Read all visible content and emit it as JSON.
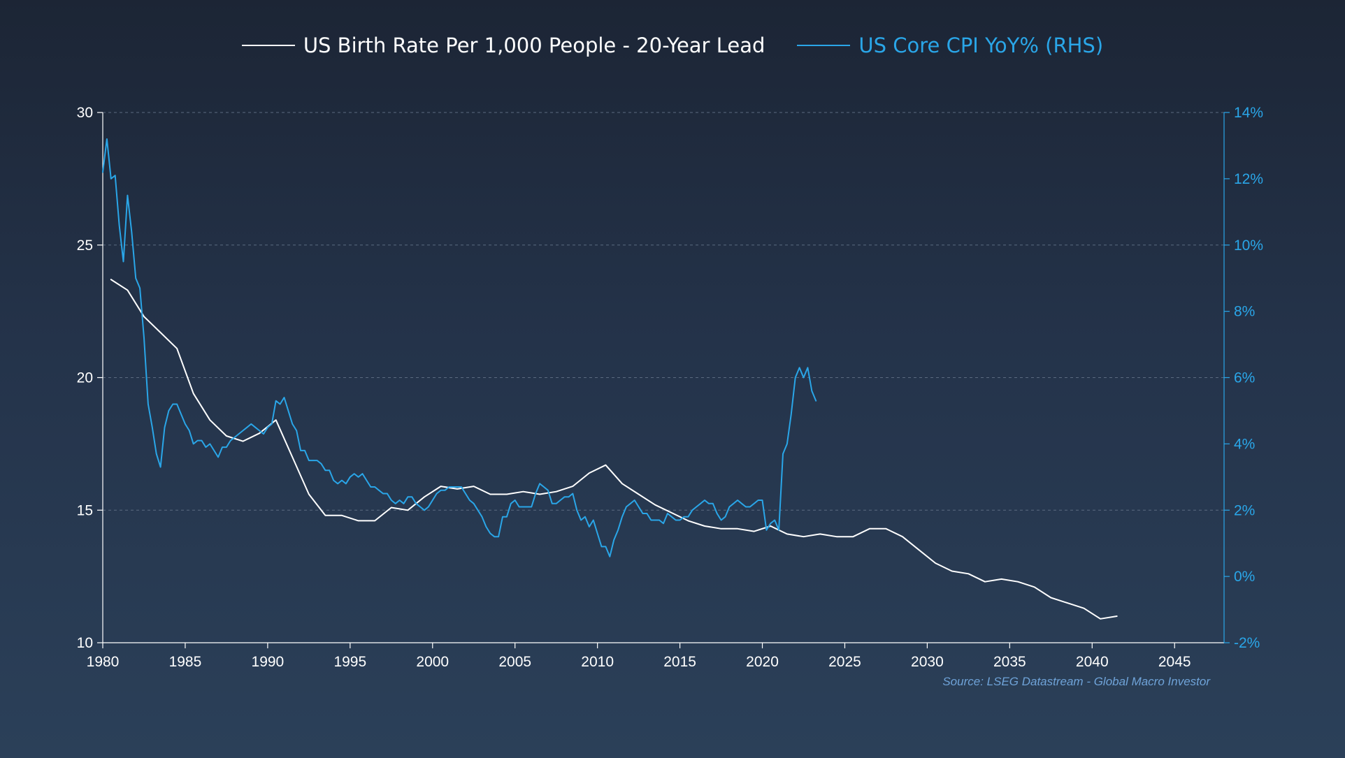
{
  "chart_data": {
    "type": "line",
    "title": "",
    "source": "Source: LSEG Datastream - Global Macro Investor",
    "x_axis": {
      "min": 1980,
      "max": 2048,
      "ticks": [
        1980,
        1985,
        1990,
        1995,
        2000,
        2005,
        2010,
        2015,
        2020,
        2025,
        2030,
        2035,
        2040,
        2045
      ],
      "tick_labels": [
        "1980",
        "1985",
        "1990",
        "1995",
        "2000",
        "2005",
        "2010",
        "2015",
        "2020",
        "2025",
        "2030",
        "2035",
        "2040",
        "2045"
      ]
    },
    "y_left": {
      "min": 10,
      "max": 30,
      "ticks": [
        10,
        15,
        20,
        25,
        30
      ],
      "tick_labels": [
        "10",
        "15",
        "20",
        "25",
        "30"
      ]
    },
    "y_right": {
      "min": -2,
      "max": 14,
      "ticks": [
        -2,
        0,
        2,
        4,
        6,
        8,
        10,
        12,
        14
      ],
      "tick_labels": [
        "-2%",
        "0%",
        "2%",
        "4%",
        "6%",
        "8%",
        "10%",
        "12%",
        "14%"
      ]
    },
    "grid": "horizontal-dashed",
    "legend_position": "top-center",
    "series": [
      {
        "name": "US Birth Rate Per 1,000 People - 20-Year Lead",
        "axis": "left",
        "color": "#ffffff",
        "points": [
          [
            1980.5,
            23.7
          ],
          [
            1981.5,
            23.3
          ],
          [
            1982.5,
            22.3
          ],
          [
            1983.5,
            21.7
          ],
          [
            1984.5,
            21.1
          ],
          [
            1985.5,
            19.4
          ],
          [
            1986.5,
            18.4
          ],
          [
            1987.5,
            17.8
          ],
          [
            1988.5,
            17.6
          ],
          [
            1989.5,
            17.9
          ],
          [
            1990.5,
            18.4
          ],
          [
            1991.5,
            17.0
          ],
          [
            1992.5,
            15.6
          ],
          [
            1993.5,
            14.8
          ],
          [
            1994.5,
            14.8
          ],
          [
            1995.5,
            14.6
          ],
          [
            1996.5,
            14.6
          ],
          [
            1997.5,
            15.1
          ],
          [
            1998.5,
            15.0
          ],
          [
            1999.5,
            15.5
          ],
          [
            2000.5,
            15.9
          ],
          [
            2001.5,
            15.8
          ],
          [
            2002.5,
            15.9
          ],
          [
            2003.5,
            15.6
          ],
          [
            2004.5,
            15.6
          ],
          [
            2005.5,
            15.7
          ],
          [
            2006.5,
            15.6
          ],
          [
            2007.5,
            15.7
          ],
          [
            2008.5,
            15.9
          ],
          [
            2009.5,
            16.4
          ],
          [
            2010.5,
            16.7
          ],
          [
            2011.5,
            16.0
          ],
          [
            2012.5,
            15.6
          ],
          [
            2013.5,
            15.2
          ],
          [
            2014.5,
            14.9
          ],
          [
            2015.5,
            14.6
          ],
          [
            2016.5,
            14.4
          ],
          [
            2017.5,
            14.3
          ],
          [
            2018.5,
            14.3
          ],
          [
            2019.5,
            14.2
          ],
          [
            2020.5,
            14.4
          ],
          [
            2021.5,
            14.1
          ],
          [
            2022.5,
            14.0
          ],
          [
            2023.5,
            14.1
          ],
          [
            2024.5,
            14.0
          ],
          [
            2025.5,
            14.0
          ],
          [
            2026.5,
            14.3
          ],
          [
            2027.5,
            14.3
          ],
          [
            2028.5,
            14.0
          ],
          [
            2029.5,
            13.5
          ],
          [
            2030.5,
            13.0
          ],
          [
            2031.5,
            12.7
          ],
          [
            2032.5,
            12.6
          ],
          [
            2033.5,
            12.3
          ],
          [
            2034.5,
            12.4
          ],
          [
            2035.5,
            12.3
          ],
          [
            2036.5,
            12.1
          ],
          [
            2037.5,
            11.7
          ],
          [
            2038.5,
            11.5
          ],
          [
            2039.5,
            11.3
          ],
          [
            2040.5,
            10.9
          ],
          [
            2041.5,
            11.0
          ]
        ]
      },
      {
        "name": "US Core CPI YoY% (RHS)",
        "axis": "right",
        "color": "#2aa6e8",
        "points": [
          [
            1980.0,
            12.2
          ],
          [
            1980.25,
            13.2
          ],
          [
            1980.5,
            12.0
          ],
          [
            1980.75,
            12.1
          ],
          [
            1981.0,
            10.6
          ],
          [
            1981.25,
            9.5
          ],
          [
            1981.5,
            11.5
          ],
          [
            1981.75,
            10.4
          ],
          [
            1982.0,
            9.0
          ],
          [
            1982.25,
            8.7
          ],
          [
            1982.5,
            7.2
          ],
          [
            1982.75,
            5.2
          ],
          [
            1983.0,
            4.5
          ],
          [
            1983.25,
            3.7
          ],
          [
            1983.5,
            3.3
          ],
          [
            1983.75,
            4.5
          ],
          [
            1984.0,
            5.0
          ],
          [
            1984.25,
            5.2
          ],
          [
            1984.5,
            5.2
          ],
          [
            1984.75,
            4.9
          ],
          [
            1985.0,
            4.6
          ],
          [
            1985.25,
            4.4
          ],
          [
            1985.5,
            4.0
          ],
          [
            1985.75,
            4.1
          ],
          [
            1986.0,
            4.1
          ],
          [
            1986.25,
            3.9
          ],
          [
            1986.5,
            4.0
          ],
          [
            1986.75,
            3.8
          ],
          [
            1987.0,
            3.6
          ],
          [
            1987.25,
            3.9
          ],
          [
            1987.5,
            3.9
          ],
          [
            1987.75,
            4.1
          ],
          [
            1988.0,
            4.2
          ],
          [
            1988.25,
            4.3
          ],
          [
            1988.5,
            4.4
          ],
          [
            1988.75,
            4.5
          ],
          [
            1989.0,
            4.6
          ],
          [
            1989.25,
            4.5
          ],
          [
            1989.5,
            4.4
          ],
          [
            1989.75,
            4.3
          ],
          [
            1990.0,
            4.5
          ],
          [
            1990.25,
            4.6
          ],
          [
            1990.5,
            5.3
          ],
          [
            1990.75,
            5.2
          ],
          [
            1991.0,
            5.4
          ],
          [
            1991.25,
            5.0
          ],
          [
            1991.5,
            4.6
          ],
          [
            1991.75,
            4.4
          ],
          [
            1992.0,
            3.8
          ],
          [
            1992.25,
            3.8
          ],
          [
            1992.5,
            3.5
          ],
          [
            1992.75,
            3.5
          ],
          [
            1993.0,
            3.5
          ],
          [
            1993.25,
            3.4
          ],
          [
            1993.5,
            3.2
          ],
          [
            1993.75,
            3.2
          ],
          [
            1994.0,
            2.9
          ],
          [
            1994.25,
            2.8
          ],
          [
            1994.5,
            2.9
          ],
          [
            1994.75,
            2.8
          ],
          [
            1995.0,
            3.0
          ],
          [
            1995.25,
            3.1
          ],
          [
            1995.5,
            3.0
          ],
          [
            1995.75,
            3.1
          ],
          [
            1996.0,
            2.9
          ],
          [
            1996.25,
            2.7
          ],
          [
            1996.5,
            2.7
          ],
          [
            1996.75,
            2.6
          ],
          [
            1997.0,
            2.5
          ],
          [
            1997.25,
            2.5
          ],
          [
            1997.5,
            2.3
          ],
          [
            1997.75,
            2.2
          ],
          [
            1998.0,
            2.3
          ],
          [
            1998.25,
            2.2
          ],
          [
            1998.5,
            2.4
          ],
          [
            1998.75,
            2.4
          ],
          [
            1999.0,
            2.2
          ],
          [
            1999.25,
            2.1
          ],
          [
            1999.5,
            2.0
          ],
          [
            1999.75,
            2.1
          ],
          [
            2000.0,
            2.3
          ],
          [
            2000.25,
            2.5
          ],
          [
            2000.5,
            2.6
          ],
          [
            2000.75,
            2.6
          ],
          [
            2001.0,
            2.7
          ],
          [
            2001.25,
            2.7
          ],
          [
            2001.5,
            2.7
          ],
          [
            2001.75,
            2.7
          ],
          [
            2002.0,
            2.5
          ],
          [
            2002.25,
            2.3
          ],
          [
            2002.5,
            2.2
          ],
          [
            2002.75,
            2.0
          ],
          [
            2003.0,
            1.8
          ],
          [
            2003.25,
            1.5
          ],
          [
            2003.5,
            1.3
          ],
          [
            2003.75,
            1.2
          ],
          [
            2004.0,
            1.2
          ],
          [
            2004.25,
            1.8
          ],
          [
            2004.5,
            1.8
          ],
          [
            2004.75,
            2.2
          ],
          [
            2005.0,
            2.3
          ],
          [
            2005.25,
            2.1
          ],
          [
            2005.5,
            2.1
          ],
          [
            2005.75,
            2.1
          ],
          [
            2006.0,
            2.1
          ],
          [
            2006.25,
            2.5
          ],
          [
            2006.5,
            2.8
          ],
          [
            2006.75,
            2.7
          ],
          [
            2007.0,
            2.6
          ],
          [
            2007.25,
            2.2
          ],
          [
            2007.5,
            2.2
          ],
          [
            2007.75,
            2.3
          ],
          [
            2008.0,
            2.4
          ],
          [
            2008.25,
            2.4
          ],
          [
            2008.5,
            2.5
          ],
          [
            2008.75,
            2.0
          ],
          [
            2009.0,
            1.7
          ],
          [
            2009.25,
            1.8
          ],
          [
            2009.5,
            1.5
          ],
          [
            2009.75,
            1.7
          ],
          [
            2010.0,
            1.3
          ],
          [
            2010.25,
            0.9
          ],
          [
            2010.5,
            0.9
          ],
          [
            2010.75,
            0.6
          ],
          [
            2011.0,
            1.1
          ],
          [
            2011.25,
            1.4
          ],
          [
            2011.5,
            1.8
          ],
          [
            2011.75,
            2.1
          ],
          [
            2012.0,
            2.2
          ],
          [
            2012.25,
            2.3
          ],
          [
            2012.5,
            2.1
          ],
          [
            2012.75,
            1.9
          ],
          [
            2013.0,
            1.9
          ],
          [
            2013.25,
            1.7
          ],
          [
            2013.5,
            1.7
          ],
          [
            2013.75,
            1.7
          ],
          [
            2014.0,
            1.6
          ],
          [
            2014.25,
            1.9
          ],
          [
            2014.5,
            1.8
          ],
          [
            2014.75,
            1.7
          ],
          [
            2015.0,
            1.7
          ],
          [
            2015.25,
            1.8
          ],
          [
            2015.5,
            1.8
          ],
          [
            2015.75,
            2.0
          ],
          [
            2016.0,
            2.1
          ],
          [
            2016.25,
            2.2
          ],
          [
            2016.5,
            2.3
          ],
          [
            2016.75,
            2.2
          ],
          [
            2017.0,
            2.2
          ],
          [
            2017.25,
            1.9
          ],
          [
            2017.5,
            1.7
          ],
          [
            2017.75,
            1.8
          ],
          [
            2018.0,
            2.1
          ],
          [
            2018.25,
            2.2
          ],
          [
            2018.5,
            2.3
          ],
          [
            2018.75,
            2.2
          ],
          [
            2019.0,
            2.1
          ],
          [
            2019.25,
            2.1
          ],
          [
            2019.5,
            2.2
          ],
          [
            2019.75,
            2.3
          ],
          [
            2020.0,
            2.3
          ],
          [
            2020.25,
            1.4
          ],
          [
            2020.5,
            1.6
          ],
          [
            2020.75,
            1.7
          ],
          [
            2021.0,
            1.4
          ],
          [
            2021.25,
            3.7
          ],
          [
            2021.5,
            4.0
          ],
          [
            2021.75,
            4.9
          ],
          [
            2022.0,
            6.0
          ],
          [
            2022.25,
            6.3
          ],
          [
            2022.5,
            6.0
          ],
          [
            2022.75,
            6.3
          ],
          [
            2023.0,
            5.6
          ],
          [
            2023.25,
            5.3
          ]
        ]
      }
    ]
  }
}
